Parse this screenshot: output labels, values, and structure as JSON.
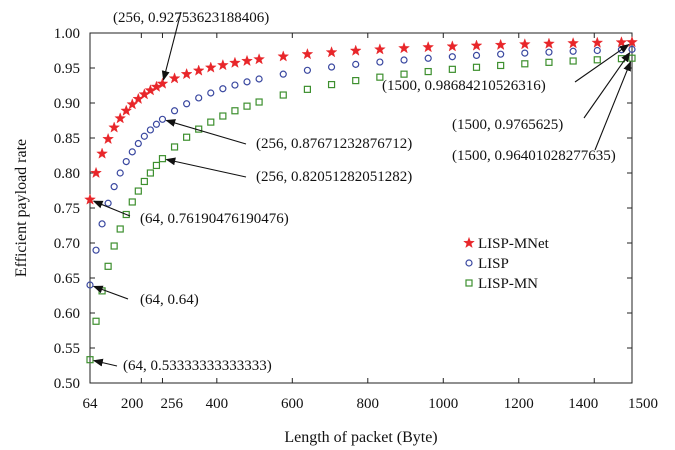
{
  "chart_data": {
    "type": "scatter",
    "title": "",
    "xlabel": "Length of packet (Byte)",
    "ylabel": "Efficient payload rate",
    "xlim": [
      64,
      1500
    ],
    "ylim": [
      0.5,
      1.0
    ],
    "xticks": [
      64,
      200,
      256,
      400,
      600,
      800,
      1000,
      1200,
      1400,
      1500
    ],
    "yticks": [
      0.5,
      0.55,
      0.6,
      0.65,
      0.7,
      0.75,
      0.8,
      0.85,
      0.9,
      0.95,
      1.0
    ],
    "grid": false,
    "legend_position": "center-right",
    "series": [
      {
        "name": "LISP-MNet",
        "marker": "star",
        "color": "#e8262a",
        "x": [
          64,
          80,
          96,
          112,
          128,
          144,
          160,
          176,
          192,
          208,
          224,
          240,
          256,
          288,
          320,
          352,
          384,
          416,
          448,
          480,
          512,
          576,
          640,
          704,
          768,
          832,
          896,
          960,
          1024,
          1088,
          1152,
          1216,
          1280,
          1344,
          1408,
          1472,
          1500
        ],
        "y": [
          0.7619,
          0.8,
          0.8276,
          0.8485,
          0.8649,
          0.878,
          0.8889,
          0.898,
          0.9057,
          0.9123,
          0.918,
          0.9231,
          0.9275,
          0.9351,
          0.9412,
          0.9462,
          0.9505,
          0.954,
          0.9573,
          0.96,
          0.9624,
          0.9664,
          0.9697,
          0.9724,
          0.9746,
          0.9765,
          0.9782,
          0.9796,
          0.9808,
          0.9819,
          0.9829,
          0.9838,
          0.9846,
          0.9853,
          0.986,
          0.9866,
          0.9868
        ]
      },
      {
        "name": "LISP",
        "marker": "circle",
        "color": "#3a48a0",
        "x": [
          64,
          80,
          96,
          112,
          128,
          144,
          160,
          176,
          192,
          208,
          224,
          240,
          256,
          288,
          320,
          352,
          384,
          416,
          448,
          480,
          512,
          576,
          640,
          704,
          768,
          832,
          896,
          960,
          1024,
          1088,
          1152,
          1216,
          1280,
          1344,
          1408,
          1472,
          1500
        ],
        "y": [
          0.64,
          0.6897,
          0.7273,
          0.7568,
          0.7805,
          0.8,
          0.8163,
          0.8302,
          0.8421,
          0.8525,
          0.8615,
          0.8696,
          0.8767,
          0.8889,
          0.8989,
          0.9072,
          0.9143,
          0.9204,
          0.9256,
          0.9302,
          0.9343,
          0.9412,
          0.9467,
          0.9514,
          0.9552,
          0.9585,
          0.9614,
          0.9639,
          0.9661,
          0.968,
          0.9697,
          0.9713,
          0.9726,
          0.9739,
          0.975,
          0.9761,
          0.9766
        ]
      },
      {
        "name": "LISP-MN",
        "marker": "square",
        "color": "#3d8f2e",
        "x": [
          64,
          80,
          96,
          112,
          128,
          144,
          160,
          176,
          192,
          208,
          224,
          240,
          256,
          288,
          320,
          352,
          384,
          416,
          448,
          480,
          512,
          576,
          640,
          704,
          768,
          832,
          896,
          960,
          1024,
          1088,
          1152,
          1216,
          1280,
          1344,
          1408,
          1472,
          1500
        ],
        "y": [
          0.5333,
          0.5882,
          0.6316,
          0.6667,
          0.6957,
          0.72,
          0.7407,
          0.7586,
          0.7742,
          0.7879,
          0.8,
          0.8108,
          0.8205,
          0.8372,
          0.8511,
          0.8627,
          0.8727,
          0.8814,
          0.8889,
          0.8955,
          0.9014,
          0.9114,
          0.9195,
          0.9263,
          0.932,
          0.9369,
          0.9412,
          0.9449,
          0.9481,
          0.951,
          0.9536,
          0.956,
          0.9581,
          0.96,
          0.9617,
          0.9633,
          0.964
        ]
      }
    ],
    "annotations": [
      {
        "text": "(256, 0.92753623188406)",
        "x": 256,
        "y": 0.9275
      },
      {
        "text": "(256, 0.87671232876712)",
        "x": 256,
        "y": 0.8767
      },
      {
        "text": "(256, 0.82051282051282)",
        "x": 256,
        "y": 0.8205
      },
      {
        "text": "(64, 0.76190476190476)",
        "x": 64,
        "y": 0.7619
      },
      {
        "text": "(64, 0.64)",
        "x": 64,
        "y": 0.64
      },
      {
        "text": "(64, 0.53333333333333)",
        "x": 64,
        "y": 0.5333
      },
      {
        "text": "(1500, 0.98684210526316)",
        "x": 1500,
        "y": 0.9868
      },
      {
        "text": "(1500, 0.9765625)",
        "x": 1500,
        "y": 0.9766
      },
      {
        "text": "(1500, 0.96401028277635)",
        "x": 1500,
        "y": 0.964
      }
    ]
  }
}
